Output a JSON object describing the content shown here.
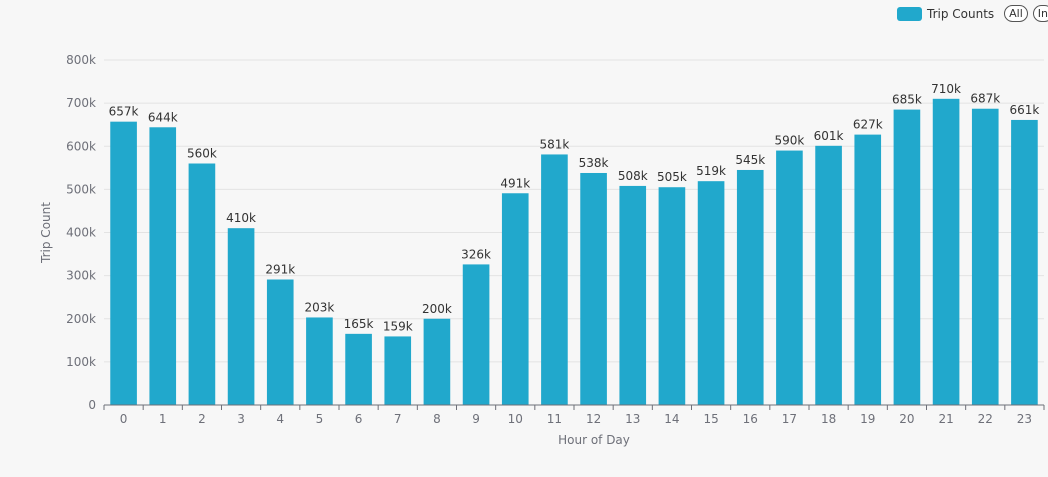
{
  "legend": {
    "series_label": "Trip Counts",
    "all_button": "All",
    "inverse_button": "In"
  },
  "colors": {
    "bar": "#21a8cc",
    "axis": "#6e7079",
    "grid": "#e3e3e3",
    "label": "#333333"
  },
  "chart_data": {
    "type": "bar",
    "xlabel": "Hour of Day",
    "ylabel": "Trip Count",
    "ylim": [
      0,
      800000
    ],
    "y_ticks": [
      0,
      100000,
      200000,
      300000,
      400000,
      500000,
      600000,
      700000,
      800000
    ],
    "y_tick_labels": [
      "0",
      "100k",
      "200k",
      "300k",
      "400k",
      "500k",
      "600k",
      "700k",
      "800k"
    ],
    "grid": true,
    "legend_position": "top-right",
    "categories": [
      "0",
      "1",
      "2",
      "3",
      "4",
      "5",
      "6",
      "7",
      "8",
      "9",
      "10",
      "11",
      "12",
      "13",
      "14",
      "15",
      "16",
      "17",
      "18",
      "19",
      "20",
      "21",
      "22",
      "23"
    ],
    "series": [
      {
        "name": "Trip Counts",
        "values": [
          657000,
          644000,
          560000,
          410000,
          291000,
          203000,
          165000,
          159000,
          200000,
          326000,
          491000,
          581000,
          538000,
          508000,
          505000,
          519000,
          545000,
          590000,
          601000,
          627000,
          685000,
          710000,
          687000,
          661000
        ],
        "data_labels": [
          "657k",
          "644k",
          "560k",
          "410k",
          "291k",
          "203k",
          "165k",
          "159k",
          "200k",
          "326k",
          "491k",
          "581k",
          "538k",
          "508k",
          "505k",
          "519k",
          "545k",
          "590k",
          "601k",
          "627k",
          "685k",
          "710k",
          "687k",
          "661k"
        ]
      }
    ]
  }
}
